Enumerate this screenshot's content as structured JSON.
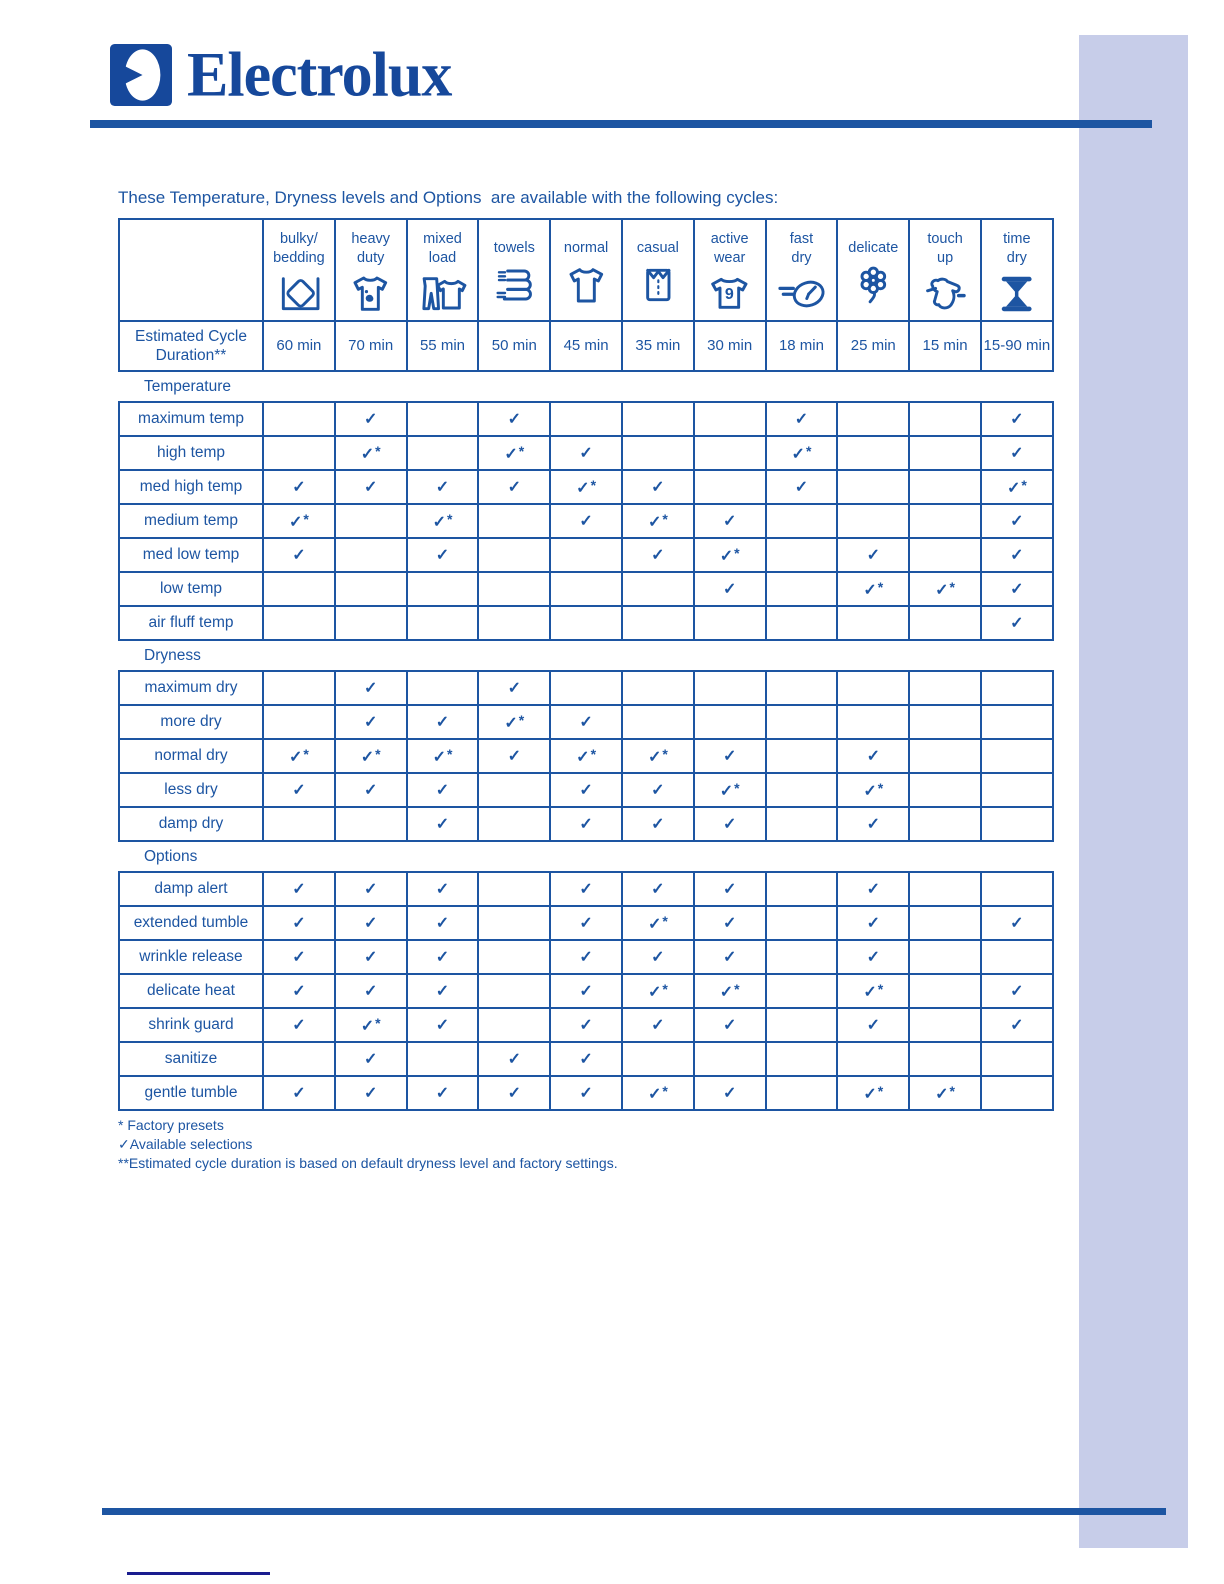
{
  "page": {
    "brand": "Electrolux",
    "title": "These Temperature, Dryness levels and Options  are available with the following cycles:"
  },
  "colors": {
    "primary_blue": "#1d55a2",
    "logo_blue": "#16489b",
    "accent_bar_lavender": "#c7cde9",
    "footer_tick_navy": "#1a1d8f",
    "paper_white": "#ffffff"
  },
  "legend": {
    "check_symbol": "✓",
    "preset_marker": "*"
  },
  "table": {
    "duration_row_label": "Estimated Cycle Duration**",
    "columns": [
      {
        "label": "bulky/\nbedding",
        "icon": "bulky-bedding-icon",
        "duration": "60 min"
      },
      {
        "label": "heavy\nduty",
        "icon": "heavy-duty-icon",
        "duration": "70 min"
      },
      {
        "label": "mixed\nload",
        "icon": "mixed-load-icon",
        "duration": "55 min"
      },
      {
        "label": "towels",
        "icon": "towels-icon",
        "duration": "50 min"
      },
      {
        "label": "normal",
        "icon": "normal-icon",
        "duration": "45 min"
      },
      {
        "label": "casual",
        "icon": "casual-icon",
        "duration": "35 min"
      },
      {
        "label": "active\nwear",
        "icon": "active-wear-icon",
        "duration": "30 min"
      },
      {
        "label": "fast\ndry",
        "icon": "fast-dry-icon",
        "duration": "18 min"
      },
      {
        "label": "delicate",
        "icon": "delicate-icon",
        "duration": "25 min"
      },
      {
        "label": "touch\nup",
        "icon": "touch-up-icon",
        "duration": "15 min"
      },
      {
        "label": "time\ndry",
        "icon": "time-dry-icon",
        "duration": "15-90 min"
      }
    ],
    "sections": [
      {
        "title": "Temperature",
        "rows": [
          {
            "label": "maximum temp",
            "cells": [
              "",
              "✓",
              "",
              "✓",
              "",
              "",
              "",
              "✓",
              "",
              "",
              "✓"
            ]
          },
          {
            "label": "high temp",
            "cells": [
              "",
              "✓*",
              "",
              "✓*",
              "✓",
              "",
              "",
              "✓*",
              "",
              "",
              "✓"
            ]
          },
          {
            "label": "med high temp",
            "cells": [
              "✓",
              "✓",
              "✓",
              "✓",
              "✓*",
              "✓",
              "",
              "✓",
              "",
              "",
              "✓*"
            ]
          },
          {
            "label": "medium temp",
            "cells": [
              "✓*",
              "",
              "✓*",
              "",
              "✓",
              "✓*",
              "✓",
              "",
              "",
              "",
              "✓"
            ]
          },
          {
            "label": "med low temp",
            "cells": [
              "✓",
              "",
              "✓",
              "",
              "",
              "✓",
              "✓*",
              "",
              "✓",
              "",
              "✓"
            ]
          },
          {
            "label": "low temp",
            "cells": [
              "",
              "",
              "",
              "",
              "",
              "",
              "✓",
              "",
              "✓*",
              "✓*",
              "✓"
            ]
          },
          {
            "label": "air fluff temp",
            "cells": [
              "",
              "",
              "",
              "",
              "",
              "",
              "",
              "",
              "",
              "",
              "✓"
            ]
          }
        ]
      },
      {
        "title": "Dryness",
        "rows": [
          {
            "label": "maximum dry",
            "cells": [
              "",
              "✓",
              "",
              "✓",
              "",
              "",
              "",
              "",
              "",
              "",
              ""
            ]
          },
          {
            "label": "more dry",
            "cells": [
              "",
              "✓",
              "✓",
              "✓*",
              "✓",
              "",
              "",
              "",
              "",
              "",
              ""
            ]
          },
          {
            "label": "normal dry",
            "cells": [
              "✓*",
              "✓*",
              "✓*",
              "✓",
              "✓*",
              "✓*",
              "✓",
              "",
              "✓",
              "",
              ""
            ]
          },
          {
            "label": "less dry",
            "cells": [
              "✓",
              "✓",
              "✓",
              "",
              "✓",
              "✓",
              "✓*",
              "",
              "✓*",
              "",
              ""
            ]
          },
          {
            "label": "damp dry",
            "cells": [
              "",
              "",
              "✓",
              "",
              "✓",
              "✓",
              "✓",
              "",
              "✓",
              "",
              ""
            ]
          }
        ]
      },
      {
        "title": "Options",
        "rows": [
          {
            "label": "damp alert",
            "cells": [
              "✓",
              "✓",
              "✓",
              "",
              "✓",
              "✓",
              "✓",
              "",
              "✓",
              "",
              ""
            ]
          },
          {
            "label": "extended tumble",
            "cells": [
              "✓",
              "✓",
              "✓",
              "",
              "✓",
              "✓*",
              "✓",
              "",
              "✓",
              "",
              "✓"
            ]
          },
          {
            "label": "wrinkle release",
            "cells": [
              "✓",
              "✓",
              "✓",
              "",
              "✓",
              "✓",
              "✓",
              "",
              "✓",
              "",
              ""
            ]
          },
          {
            "label": "delicate heat",
            "cells": [
              "✓",
              "✓",
              "✓",
              "",
              "✓",
              "✓*",
              "✓*",
              "",
              "✓*",
              "",
              "✓"
            ]
          },
          {
            "label": "shrink guard",
            "cells": [
              "✓",
              "✓*",
              "✓",
              "",
              "✓",
              "✓",
              "✓",
              "",
              "✓",
              "",
              "✓"
            ]
          },
          {
            "label": "sanitize",
            "cells": [
              "",
              "✓",
              "",
              "✓",
              "✓",
              "",
              "",
              "",
              "",
              "",
              ""
            ]
          },
          {
            "label": "gentle tumble",
            "cells": [
              "✓",
              "✓",
              "✓",
              "✓",
              "✓",
              "✓*",
              "✓",
              "",
              "✓*",
              "✓*",
              ""
            ]
          }
        ]
      }
    ]
  },
  "footnotes": [
    "* Factory presets",
    "✓Available selections",
    "**Estimated cycle duration is based on default dryness level and factory settings."
  ]
}
